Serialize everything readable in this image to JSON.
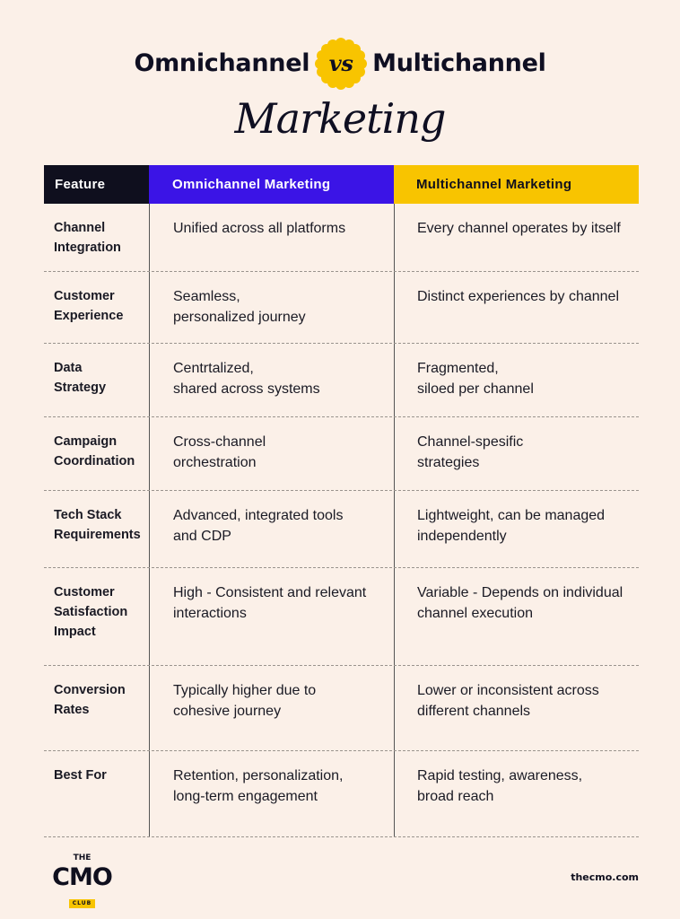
{
  "header": {
    "title_left": "Omnichannel",
    "vs": "vs",
    "title_right": "Multichannel",
    "subtitle": "Marketing",
    "accent": "#f8c400"
  },
  "table": {
    "columns": [
      "Feature",
      "Omnichannel Marketing",
      "Multichannel Marketing"
    ],
    "column_colors": [
      "#0f0f1e",
      "#3b14e6",
      "#f8c400"
    ],
    "rows": [
      {
        "feature": "Channel\nIntegration",
        "omni": "Unified across all platforms",
        "multi": "Every channel operates by itself"
      },
      {
        "feature": "Customer\nExperience",
        "omni": "Seamless,\npersonalized journey",
        "multi": "Distinct experiences by channel"
      },
      {
        "feature": "Data\nStrategy",
        "omni": "Centrtalized,\nshared across systems",
        "multi": "Fragmented,\nsiloed per channel"
      },
      {
        "feature": "Campaign\nCoordination",
        "omni": "Cross-channel\norchestration",
        "multi": "Channel-spesific\nstrategies"
      },
      {
        "feature": "Tech Stack\nRequirements",
        "omni": "Advanced, integrated tools\nand CDP",
        "multi": "Lightweight, can be managed\nindependently"
      },
      {
        "feature": "Customer\nSatisfaction\nImpact",
        "omni": "High - Consistent and relevant\ninteractions",
        "multi": "Variable - Depends on individual\nchannel execution"
      },
      {
        "feature": "Conversion\nRates",
        "omni": "Typically higher due to\ncohesive journey",
        "multi": "Lower or inconsistent across\ndifferent channels"
      },
      {
        "feature": "Best For",
        "omni": "Retention, personalization,\nlong-term engagement",
        "multi": "Rapid testing, awareness,\nbroad reach"
      }
    ]
  },
  "footer": {
    "logo_the": "THE",
    "logo_cmo": "CMO",
    "logo_club": "CLUB",
    "website": "thecmo.com"
  }
}
